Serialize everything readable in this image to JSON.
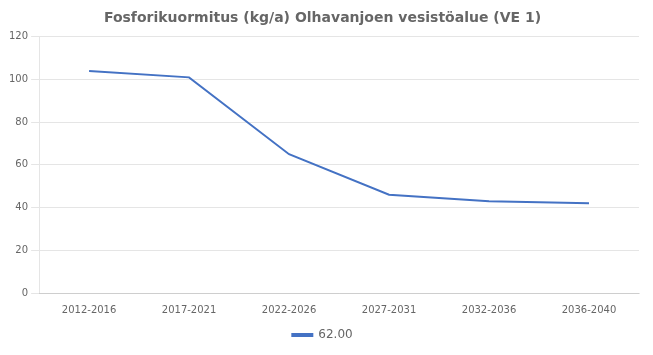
{
  "chart_data": {
    "type": "line",
    "title": "Fosforikuormitus (kg/a) Olhavanjoen vesistöalue (VE 1)",
    "categories": [
      "2012-2016",
      "2017-2021",
      "2022-2026",
      "2027-2031",
      "2032-2036",
      "2036-2040"
    ],
    "series": [
      {
        "name": "62.00",
        "color": "#4472C4",
        "values": [
          104,
          101,
          65,
          46,
          43,
          42
        ]
      }
    ],
    "ylim": [
      0,
      120
    ],
    "yticks": [
      0,
      20,
      40,
      60,
      80,
      100,
      120
    ],
    "grid": true,
    "legend": "bottom"
  }
}
